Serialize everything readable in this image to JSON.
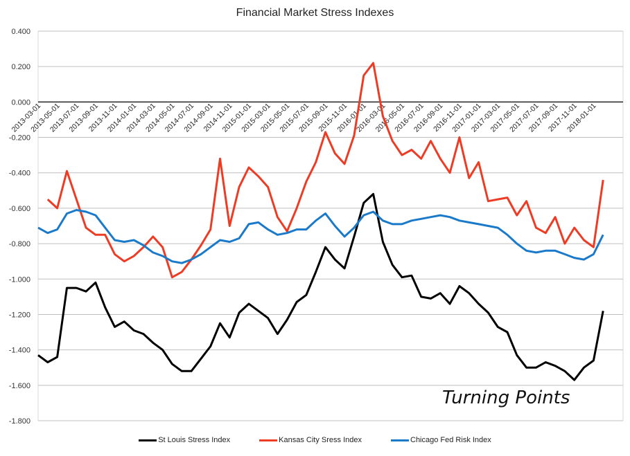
{
  "chart_data": {
    "type": "line",
    "title": "Financial Market Stress Indexes",
    "xlabel": "",
    "ylabel": "",
    "ylim": [
      -1.8,
      0.4
    ],
    "yticks": [
      "0.400",
      "0.200",
      "0.000",
      "-0.200",
      "-0.400",
      "-0.600",
      "-0.800",
      "-1.000",
      "-1.200",
      "-1.400",
      "-1.600",
      "-1.800"
    ],
    "grid": true,
    "legend_position": "bottom",
    "annotation": "Turning Points",
    "x_tick_labels": [
      "2013-03-01",
      "2013-05-01",
      "2013-07-01",
      "2013-09-01",
      "2013-11-01",
      "2014-01-01",
      "2014-03-01",
      "2014-05-01",
      "2014-07-01",
      "2014-09-01",
      "2014-11-01",
      "2015-01-01",
      "2015-03-01",
      "2015-05-01",
      "2015-07-01",
      "2015-09-01",
      "2015-11-01",
      "2016-01-01",
      "2016-03-01",
      "2016-05-01",
      "2016-07-01",
      "2016-09-01",
      "2016-11-01",
      "2017-01-01",
      "2017-03-01",
      "2017-05-01",
      "2017-07-01",
      "2017-09-01",
      "2017-11-01",
      "2018-01-01"
    ],
    "x": [
      "2013-03",
      "2013-04",
      "2013-05",
      "2013-06",
      "2013-07",
      "2013-08",
      "2013-09",
      "2013-10",
      "2013-11",
      "2013-12",
      "2014-01",
      "2014-02",
      "2014-03",
      "2014-04",
      "2014-05",
      "2014-06",
      "2014-07",
      "2014-08",
      "2014-09",
      "2014-10",
      "2014-11",
      "2014-12",
      "2015-01",
      "2015-02",
      "2015-03",
      "2015-04",
      "2015-05",
      "2015-06",
      "2015-07",
      "2015-08",
      "2015-09",
      "2015-10",
      "2015-11",
      "2015-12",
      "2016-01",
      "2016-02",
      "2016-03",
      "2016-04",
      "2016-05",
      "2016-06",
      "2016-07",
      "2016-08",
      "2016-09",
      "2016-10",
      "2016-11",
      "2016-12",
      "2017-01",
      "2017-02",
      "2017-03",
      "2017-04",
      "2017-05",
      "2017-06",
      "2017-07",
      "2017-08",
      "2017-09",
      "2017-10",
      "2017-11",
      "2017-12",
      "2018-01",
      "2018-02",
      "2018-03"
    ],
    "series": [
      {
        "name": "St Louis Stress Index",
        "color": "#000000",
        "values": [
          -1.43,
          -1.47,
          -1.44,
          -1.05,
          -1.05,
          -1.07,
          -1.02,
          -1.16,
          -1.27,
          -1.24,
          -1.29,
          -1.31,
          -1.36,
          -1.4,
          -1.48,
          -1.52,
          -1.52,
          -1.45,
          -1.38,
          -1.25,
          -1.33,
          -1.19,
          -1.14,
          -1.18,
          -1.22,
          -1.31,
          -1.23,
          -1.13,
          -1.09,
          -0.96,
          -0.82,
          -0.89,
          -0.94,
          -0.76,
          -0.57,
          -0.52,
          -0.79,
          -0.92,
          -0.99,
          -0.98,
          -1.1,
          -1.11,
          -1.08,
          -1.14,
          -1.04,
          -1.08,
          -1.14,
          -1.19,
          -1.27,
          -1.3,
          -1.43,
          -1.5,
          -1.5,
          -1.47,
          -1.49,
          -1.52,
          -1.57,
          -1.5,
          -1.46,
          -1.18,
          null
        ]
      },
      {
        "name": "Kansas City Sress Index",
        "color": "#EE3B24",
        "values": [
          null,
          -0.55,
          -0.6,
          -0.39,
          -0.55,
          -0.71,
          -0.75,
          -0.75,
          -0.86,
          -0.9,
          -0.87,
          -0.82,
          -0.76,
          -0.82,
          -0.99,
          -0.96,
          -0.89,
          -0.81,
          -0.72,
          -0.32,
          -0.7,
          -0.48,
          -0.37,
          -0.42,
          -0.48,
          -0.65,
          -0.73,
          -0.6,
          -0.45,
          -0.34,
          -0.17,
          -0.29,
          -0.35,
          -0.19,
          0.15,
          0.22,
          -0.08,
          -0.22,
          -0.3,
          -0.27,
          -0.32,
          -0.22,
          -0.32,
          -0.4,
          -0.2,
          -0.43,
          -0.34,
          -0.56,
          -0.55,
          -0.54,
          -0.64,
          -0.56,
          -0.71,
          -0.74,
          -0.65,
          -0.8,
          -0.71,
          -0.78,
          -0.82,
          -0.44,
          null
        ]
      },
      {
        "name": "Chicago Fed Risk Index",
        "color": "#1A7AC9",
        "values": [
          -0.71,
          -0.74,
          -0.72,
          -0.63,
          -0.61,
          -0.62,
          -0.64,
          -0.71,
          -0.78,
          -0.79,
          -0.78,
          -0.81,
          -0.85,
          -0.87,
          -0.9,
          -0.91,
          -0.89,
          -0.86,
          -0.82,
          -0.78,
          -0.79,
          -0.77,
          -0.69,
          -0.68,
          -0.72,
          -0.75,
          -0.74,
          -0.72,
          -0.72,
          -0.67,
          -0.63,
          -0.7,
          -0.76,
          -0.71,
          -0.64,
          -0.62,
          -0.67,
          -0.69,
          -0.69,
          -0.67,
          -0.66,
          -0.65,
          -0.64,
          -0.65,
          -0.67,
          -0.68,
          -0.69,
          -0.7,
          -0.71,
          -0.75,
          -0.8,
          -0.84,
          -0.85,
          -0.84,
          -0.84,
          -0.86,
          -0.88,
          -0.89,
          -0.86,
          -0.75,
          null
        ]
      }
    ]
  }
}
